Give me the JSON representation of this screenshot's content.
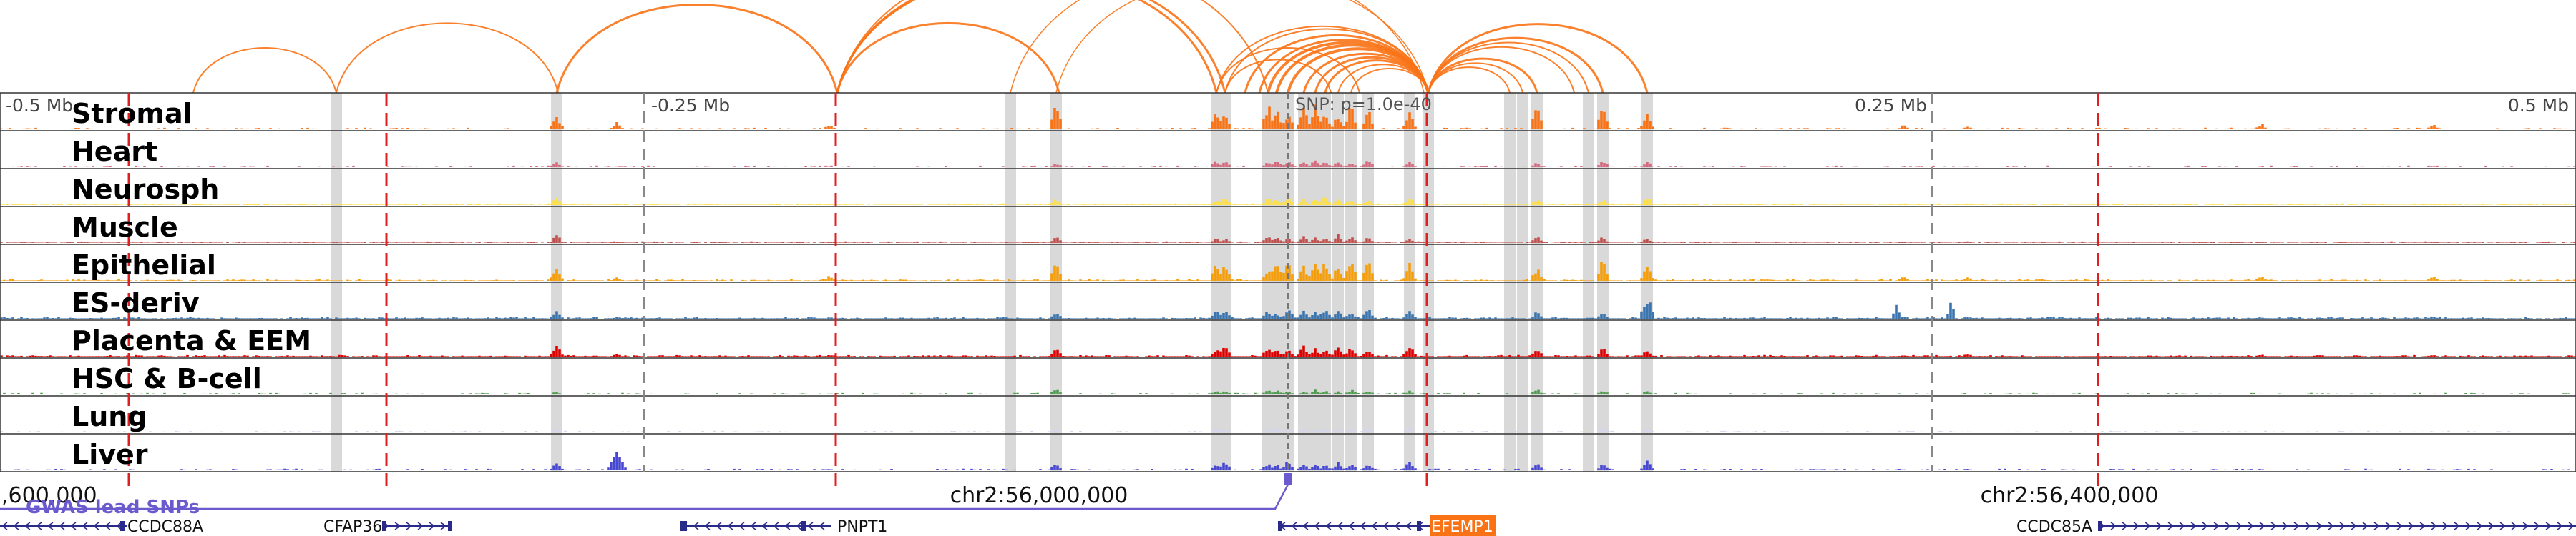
{
  "scale": {
    "ticks": [
      {
        "label": "-0.5 Mb",
        "anchor": "left"
      },
      {
        "label": "-0.25 Mb",
        "anchor": "left"
      },
      {
        "label": "0.25 Mb",
        "anchor": "left"
      },
      {
        "label": "0.5 Mb",
        "anchor": "right"
      }
    ],
    "snp_label": "SNP: p=1.0e-40"
  },
  "tracks": [
    {
      "name": "Stromal",
      "color": "#f97316",
      "level": 1.0
    },
    {
      "name": "Heart",
      "color": "#d46a7e",
      "level": 0.3
    },
    {
      "name": "Neurosph",
      "color": "#fde047",
      "level": 0.35
    },
    {
      "name": "Muscle",
      "color": "#c0504d",
      "level": 0.3
    },
    {
      "name": "Epithelial",
      "color": "#f59e0b",
      "level": 0.9
    },
    {
      "name": "ES-deriv",
      "color": "#3b75af",
      "level": 0.4
    },
    {
      "name": "Placenta & EEM",
      "color": "#dd0000",
      "level": 0.45
    },
    {
      "name": "HSC & B-cell",
      "color": "#4c9a4c",
      "level": 0.2
    },
    {
      "name": "Lung",
      "color": "#d6d6ea",
      "level": 0.2
    },
    {
      "name": "Liver",
      "color": "#4747d1",
      "level": 0.35
    }
  ],
  "coords": [
    {
      "label": ",600,000",
      "anchor": "left"
    },
    {
      "label": "chr2:56,000,000",
      "anchor": "middle"
    },
    {
      "label": "chr2:56,400,000",
      "anchor": "middle"
    }
  ],
  "gwas": {
    "label": "GWAS lead SNPs",
    "color": "#6a5acd"
  },
  "genes": [
    {
      "label": "CCDC88A",
      "strand": "-",
      "highlight": false
    },
    {
      "label": "CFAP36",
      "strand": "+",
      "highlight": false
    },
    {
      "label": "PNPT1",
      "strand": "-",
      "highlight": false
    },
    {
      "label": "EFEMP1",
      "strand": "-",
      "highlight": true
    },
    {
      "label": "CCDC85A",
      "strand": "+",
      "highlight": false
    }
  ],
  "colors": {
    "arc": "#f97316",
    "boundary": "#e02020",
    "highlight_column": "#d9d9d9",
    "gene_highlight_bg": "#f97316",
    "gene_line": "#2a2a8a"
  }
}
